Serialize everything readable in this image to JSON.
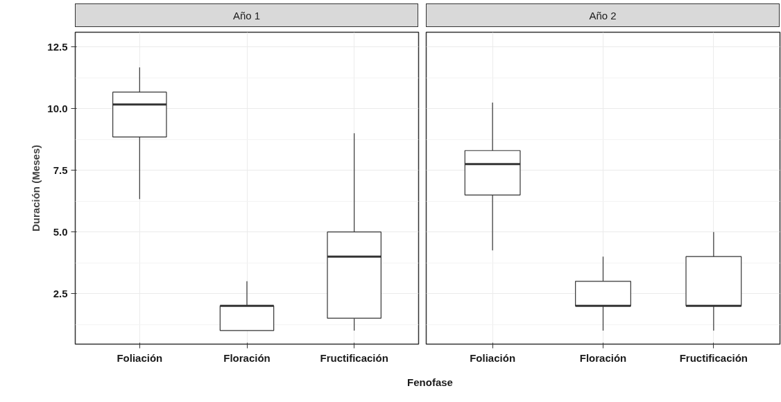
{
  "chart_data": [
    {
      "type": "box",
      "title": "Año 1",
      "ylabel": "Duración (Meses)",
      "xlabel": "Fenofase",
      "categories": [
        "Foliación",
        "Floración",
        "Fructificación"
      ],
      "boxes": [
        {
          "low": 6.33,
          "q1": 8.85,
          "median": 10.17,
          "q3": 10.67,
          "high": 11.67
        },
        {
          "low": 1,
          "q1": 1,
          "median": 2,
          "q3": 2,
          "high": 3
        },
        {
          "low": 1,
          "q1": 1.5,
          "median": 4,
          "q3": 5,
          "high": 9
        }
      ],
      "ylim": [
        0.45,
        13.1
      ],
      "yticks": [
        {
          "value": 2.5,
          "label": "2.5"
        },
        {
          "value": 5,
          "label": "5.0"
        },
        {
          "value": 7.5,
          "label": "7.5"
        },
        {
          "value": 10,
          "label": "10.0"
        },
        {
          "value": 12.5,
          "label": "12.5"
        }
      ],
      "grid": true
    },
    {
      "type": "box",
      "title": "Año 2",
      "categories": [
        "Foliación",
        "Floración",
        "Fructificación"
      ],
      "boxes": [
        {
          "low": 4.25,
          "q1": 6.5,
          "median": 7.75,
          "q3": 8.3,
          "high": 10.25
        },
        {
          "low": 1,
          "q1": 2,
          "median": 2,
          "q3": 3,
          "high": 4
        },
        {
          "low": 1,
          "q1": 2,
          "median": 2,
          "q3": 4,
          "high": 5
        }
      ],
      "ylim": [
        0.45,
        13.1
      ],
      "yticks": [
        2.5,
        5,
        7.5,
        10,
        12.5
      ],
      "grid": true,
      "tick_labels": "x"
    }
  ]
}
